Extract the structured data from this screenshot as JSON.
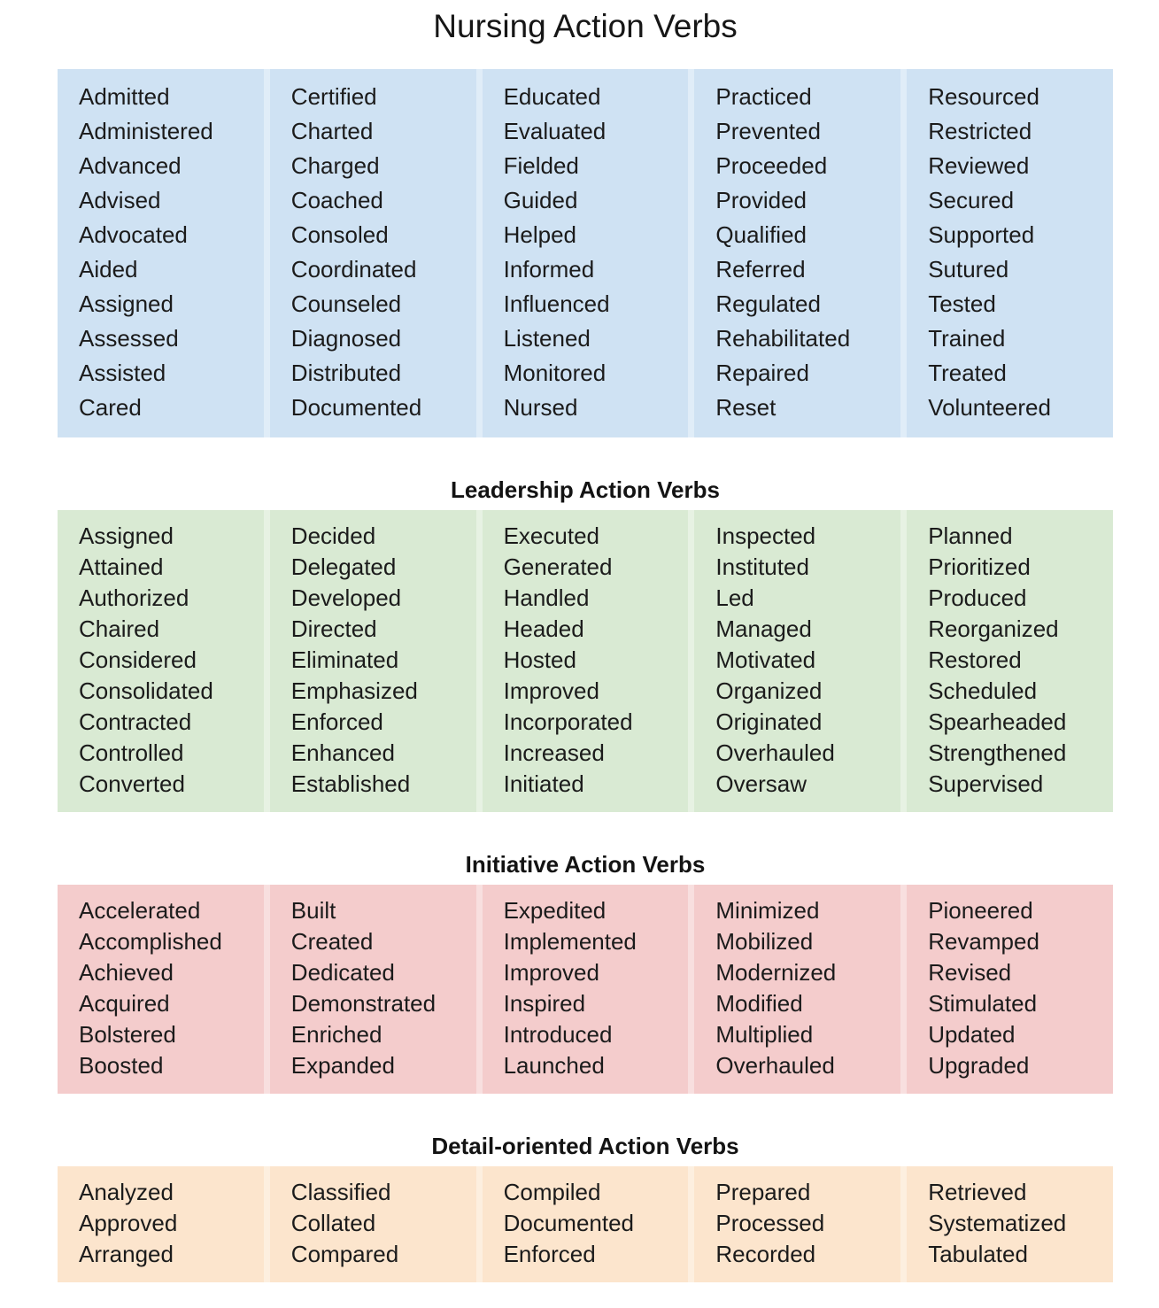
{
  "title": "Nursing Action Verbs",
  "text_color": "#1b1b1b",
  "sections": [
    {
      "id": "nursing",
      "header": null,
      "bg": "#cfe2f3",
      "gap_bg": "#e0edf8",
      "columns": [
        [
          "Admitted",
          "Administered",
          "Advanced",
          "Advised",
          "Advocated",
          "Aided",
          "Assigned",
          "Assessed",
          "Assisted",
          "Cared"
        ],
        [
          "Certified",
          "Charted",
          "Charged",
          "Coached",
          "Consoled",
          "Coordinated",
          "Counseled",
          "Diagnosed",
          "Distributed",
          "Documented"
        ],
        [
          "Educated",
          "Evaluated",
          "Fielded",
          "Guided",
          "Helped",
          "Informed",
          "Influenced",
          "Listened",
          "Monitored",
          "Nursed"
        ],
        [
          "Practiced",
          "Prevented",
          "Proceeded",
          "Provided",
          "Qualified",
          "Referred",
          "Regulated",
          "Rehabilitated",
          "Repaired",
          "Reset"
        ],
        [
          "Resourced",
          "Restricted",
          "Reviewed",
          "Secured",
          "Supported",
          "Sutured",
          "Tested",
          "Trained",
          "Treated",
          "Volunteered"
        ]
      ]
    },
    {
      "id": "leadership",
      "header": "Leadership Action Verbs",
      "bg": "#d9ead3",
      "gap_bg": "#e7f2e3",
      "columns": [
        [
          "Assigned",
          "Attained",
          "Authorized",
          "Chaired",
          "Considered",
          "Consolidated",
          "Contracted",
          "Controlled",
          "Converted"
        ],
        [
          "Decided",
          "Delegated",
          "Developed",
          "Directed",
          "Eliminated",
          "Emphasized",
          "Enforced",
          "Enhanced",
          "Established"
        ],
        [
          "Executed",
          "Generated",
          "Handled",
          "Headed",
          "Hosted",
          "Improved",
          "Incorporated",
          "Increased",
          "Initiated"
        ],
        [
          "Inspected",
          "Instituted",
          "Led",
          "Managed",
          "Motivated",
          "Organized",
          "Originated",
          "Overhauled",
          "Oversaw"
        ],
        [
          "Planned",
          "Prioritized",
          "Produced",
          "Reorganized",
          "Restored",
          "Scheduled",
          "Spearheaded",
          "Strengthened",
          "Supervised"
        ]
      ]
    },
    {
      "id": "initiative",
      "header": "Initiative Action Verbs",
      "bg": "#f4cccc",
      "gap_bg": "#f8dfdf",
      "columns": [
        [
          "Accelerated",
          "Accomplished",
          "Achieved",
          "Acquired",
          "Bolstered",
          "Boosted"
        ],
        [
          "Built",
          "Created",
          "Dedicated",
          "Demonstrated",
          "Enriched",
          "Expanded"
        ],
        [
          "Expedited",
          "Implemented",
          "Improved",
          "Inspired",
          "Introduced",
          "Launched"
        ],
        [
          "Minimized",
          "Mobilized",
          "Modernized",
          "Modified",
          "Multiplied",
          "Overhauled"
        ],
        [
          "Pioneered",
          "Revamped",
          "Revised",
          "Stimulated",
          "Updated",
          "Upgraded"
        ]
      ]
    },
    {
      "id": "detail",
      "header": "Detail-oriented Action Verbs",
      "bg": "#fce5cd",
      "gap_bg": "#fdefdf",
      "columns": [
        [
          "Analyzed",
          "Approved",
          "Arranged"
        ],
        [
          "Classified",
          "Collated",
          "Compared"
        ],
        [
          "Compiled",
          "Documented",
          "Enforced"
        ],
        [
          "Prepared",
          "Processed",
          "Recorded"
        ],
        [
          "Retrieved",
          "Systematized",
          "Tabulated"
        ]
      ]
    }
  ]
}
